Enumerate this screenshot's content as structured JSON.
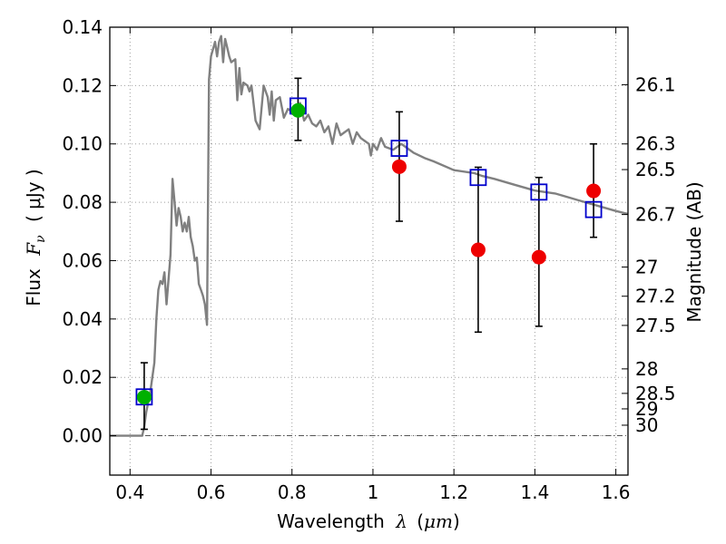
{
  "chart_data": {
    "type": "scatter",
    "xlabel_prefix": "Wavelength",
    "xlabel_symbol": "λ",
    "xlabel_unit_open": "(",
    "xlabel_unit": "μm",
    "xlabel_unit_close": ")",
    "ylabel_prefix": "Flux",
    "ylabel_symbol": "F",
    "ylabel_subscript": "ν",
    "ylabel_unit": "( μJy )",
    "y2label": "Magnitude (AB)",
    "xlim": [
      0.35,
      1.63
    ],
    "ylim": [
      -0.0135,
      0.14
    ],
    "grid": true,
    "x_ticks": [
      {
        "value": 0.4,
        "label": "0.4"
      },
      {
        "value": 0.6,
        "label": "0.6"
      },
      {
        "value": 0.8,
        "label": "0.8"
      },
      {
        "value": 1.0,
        "label": "1"
      },
      {
        "value": 1.2,
        "label": "1.2"
      },
      {
        "value": 1.4,
        "label": "1.4"
      },
      {
        "value": 1.6,
        "label": "1.6"
      }
    ],
    "y_ticks": [
      {
        "value": 0.0,
        "label": "0.00"
      },
      {
        "value": 0.02,
        "label": "0.02"
      },
      {
        "value": 0.04,
        "label": "0.04"
      },
      {
        "value": 0.06,
        "label": "0.06"
      },
      {
        "value": 0.08,
        "label": "0.08"
      },
      {
        "value": 0.1,
        "label": "0.10"
      },
      {
        "value": 0.12,
        "label": "0.12"
      },
      {
        "value": 0.14,
        "label": "0.14"
      }
    ],
    "y2_ticks": [
      {
        "flux": 0.1203,
        "label": "26.1"
      },
      {
        "flux": 0.1,
        "label": "26.3"
      },
      {
        "flux": 0.0912,
        "label": "26.5"
      },
      {
        "flux": 0.0758,
        "label": "26.7"
      },
      {
        "flux": 0.0578,
        "label": "27"
      },
      {
        "flux": 0.0478,
        "label": "27.2"
      },
      {
        "flux": 0.0378,
        "label": "27.5"
      },
      {
        "flux": 0.0229,
        "label": "28"
      },
      {
        "flux": 0.0145,
        "label": "28.5"
      },
      {
        "flux": 0.0092,
        "label": "29"
      },
      {
        "flux": 0.0036,
        "label": "30"
      }
    ],
    "colors": {
      "sed": "#808080",
      "detection": "#00b000",
      "measurement": "#ee0000",
      "model_band": "#0000cc",
      "errorbar": "#000000",
      "grid": "#9e9e9e"
    },
    "sed": {
      "x": [
        0.35,
        0.4,
        0.42,
        0.43,
        0.435,
        0.44,
        0.45,
        0.46,
        0.465,
        0.47,
        0.475,
        0.48,
        0.485,
        0.49,
        0.5,
        0.505,
        0.51,
        0.515,
        0.52,
        0.525,
        0.53,
        0.535,
        0.54,
        0.545,
        0.55,
        0.555,
        0.56,
        0.565,
        0.57,
        0.575,
        0.58,
        0.585,
        0.59,
        0.595,
        0.6,
        0.61,
        0.615,
        0.62,
        0.625,
        0.63,
        0.635,
        0.64,
        0.645,
        0.65,
        0.66,
        0.665,
        0.67,
        0.675,
        0.68,
        0.69,
        0.695,
        0.7,
        0.71,
        0.72,
        0.73,
        0.74,
        0.745,
        0.75,
        0.755,
        0.76,
        0.77,
        0.78,
        0.79,
        0.8,
        0.81,
        0.82,
        0.83,
        0.84,
        0.85,
        0.86,
        0.87,
        0.88,
        0.89,
        0.9,
        0.91,
        0.92,
        0.93,
        0.94,
        0.95,
        0.96,
        0.97,
        0.98,
        0.99,
        0.995,
        1.0,
        1.01,
        1.02,
        1.03,
        1.05,
        1.07,
        1.1,
        1.13,
        1.15,
        1.2,
        1.25,
        1.27,
        1.3,
        1.35,
        1.4,
        1.45,
        1.5,
        1.55,
        1.6,
        1.63
      ],
      "y": [
        0.0,
        0.0,
        0.0,
        0.0,
        0.003,
        0.008,
        0.015,
        0.025,
        0.04,
        0.05,
        0.053,
        0.052,
        0.056,
        0.045,
        0.062,
        0.088,
        0.08,
        0.072,
        0.078,
        0.075,
        0.07,
        0.073,
        0.07,
        0.075,
        0.068,
        0.065,
        0.06,
        0.061,
        0.052,
        0.05,
        0.048,
        0.045,
        0.038,
        0.122,
        0.13,
        0.135,
        0.13,
        0.135,
        0.137,
        0.128,
        0.136,
        0.133,
        0.13,
        0.128,
        0.129,
        0.115,
        0.126,
        0.117,
        0.121,
        0.12,
        0.118,
        0.12,
        0.108,
        0.105,
        0.12,
        0.116,
        0.11,
        0.118,
        0.108,
        0.115,
        0.116,
        0.109,
        0.112,
        0.111,
        0.112,
        0.114,
        0.108,
        0.11,
        0.107,
        0.106,
        0.108,
        0.104,
        0.106,
        0.1,
        0.107,
        0.103,
        0.104,
        0.105,
        0.1,
        0.104,
        0.102,
        0.101,
        0.1,
        0.096,
        0.1,
        0.098,
        0.102,
        0.099,
        0.098,
        0.1,
        0.097,
        0.095,
        0.094,
        0.091,
        0.09,
        0.089,
        0.088,
        0.086,
        0.084,
        0.083,
        0.081,
        0.079,
        0.077,
        0.076
      ]
    },
    "model_bands": {
      "x": [
        0.435,
        0.815,
        1.065,
        1.26,
        1.41,
        1.545
      ],
      "y": [
        0.0133,
        0.113,
        0.0985,
        0.0885,
        0.0835,
        0.0775
      ]
    },
    "measurements": {
      "x": [
        1.065,
        1.26,
        1.41,
        1.545
      ],
      "y": [
        0.0922,
        0.0637,
        0.0612,
        0.0839
      ],
      "err_low": [
        0.0735,
        0.0355,
        0.0375,
        0.068
      ],
      "err_high": [
        0.111,
        0.092,
        0.0885,
        0.1
      ]
    },
    "detections": {
      "x": [
        0.435,
        0.815
      ],
      "y": [
        0.0132,
        0.1115
      ],
      "err_low": [
        0.0022,
        0.1012
      ],
      "err_high": [
        0.025,
        0.1225
      ]
    }
  }
}
